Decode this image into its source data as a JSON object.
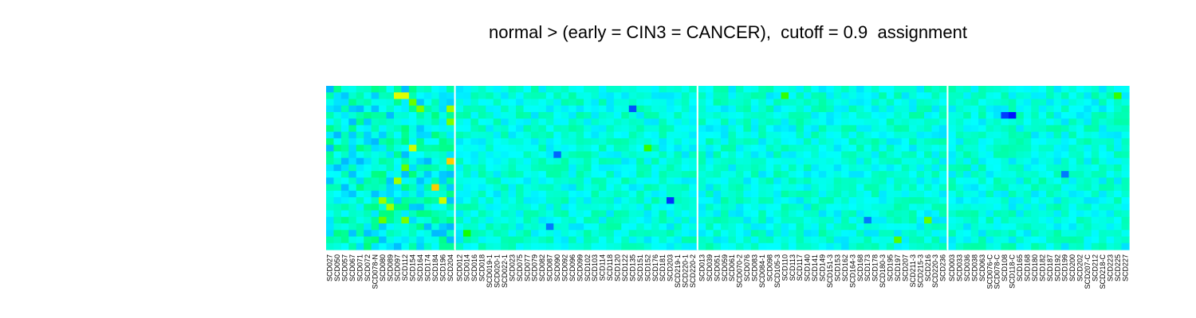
{
  "chart_data": {
    "type": "heatmap",
    "title": "normal > (early = CIN3 = CANCER),  cutoff = 0.9  assignment",
    "colormap": [
      "#0000ff",
      "#00ffff",
      "#00ff00",
      "#ffff00",
      "#ff0000"
    ],
    "background_level": 0.28,
    "n_rows": 25,
    "groups": [
      {
        "columns": [
          "SCD027",
          "SCD050",
          "SCD057",
          "SCD067",
          "SCD071",
          "SCD072",
          "SCD078-N",
          "SCD080",
          "SCD089",
          "SCD097",
          "SCD112",
          "SCD154",
          "SCD164",
          "SCD174",
          "SCD184",
          "SCD196",
          "SCD204"
        ],
        "hot_cells": [
          [
            1,
            9,
            0.72
          ],
          [
            1,
            10,
            0.72
          ],
          [
            2,
            11,
            0.6
          ],
          [
            3,
            12,
            0.62
          ],
          [
            3,
            16,
            0.65
          ],
          [
            5,
            16,
            0.62
          ],
          [
            9,
            11,
            0.7
          ],
          [
            11,
            16,
            0.8
          ],
          [
            12,
            10,
            0.6
          ],
          [
            13,
            17,
            0.68
          ],
          [
            14,
            9,
            0.66
          ],
          [
            15,
            14,
            0.8
          ],
          [
            17,
            7,
            0.65
          ],
          [
            17,
            15,
            0.7
          ],
          [
            18,
            17,
            0.7
          ],
          [
            18,
            8,
            0.66
          ],
          [
            20,
            7,
            0.6
          ],
          [
            20,
            10,
            0.62
          ],
          [
            21,
            17,
            0.62
          ],
          [
            22,
            17,
            0.62
          ],
          [
            25,
            3,
            0.9
          ],
          [
            26,
            3,
            0.85
          ],
          [
            26,
            2,
            0.72
          ],
          [
            27,
            4,
            0.85
          ],
          [
            28,
            3,
            0.65
          ],
          [
            28,
            11,
            0.65
          ],
          [
            29,
            10,
            0.7
          ],
          [
            31,
            17,
            0.82
          ],
          [
            32,
            10,
            0.68
          ],
          [
            30,
            12,
            0.6
          ]
        ],
        "cold_cells": []
      },
      {
        "columns": [
          "SCD012",
          "SCD014",
          "SCD016",
          "SCD018",
          "SCD019-1",
          "SCD020-1",
          "SCD022-1",
          "SCD023",
          "SCD075",
          "SCD077",
          "SCD079",
          "SCD082",
          "SCD087",
          "SCD090",
          "SCD092",
          "SCD096",
          "SCD099",
          "SCD102",
          "SCD103",
          "SCD114",
          "SCD118",
          "SCD120",
          "SCD122",
          "SCD135",
          "SCD151",
          "SCD152",
          "SCD176",
          "SCD181",
          "SCD203",
          "SCD219-1",
          "SCD220-1",
          "SCD220-2"
        ],
        "hot_cells": [
          [
            9,
            25,
            0.55
          ],
          [
            22,
            1,
            0.52
          ],
          [
            31,
            21,
            0.55
          ],
          [
            31,
            22,
            0.52
          ]
        ],
        "cold_cells": [
          [
            3,
            23,
            0.08
          ],
          [
            17,
            28,
            0.05
          ],
          [
            10,
            13,
            0.1
          ],
          [
            21,
            12,
            0.12
          ]
        ]
      },
      {
        "columns": [
          "SCD013",
          "SCD039",
          "SCD051",
          "SCD059",
          "SCD061",
          "SCD070-2",
          "SCD076",
          "SCD083",
          "SCD084-1",
          "SCD098",
          "SCD105-3",
          "SCD110",
          "SCD113",
          "SCD117",
          "SCD140",
          "SCD141",
          "SCD149",
          "SCD151-3",
          "SCD153",
          "SCD162",
          "SCD164-3",
          "SCD168",
          "SCD173",
          "SCD178",
          "SCD180-3",
          "SCD195",
          "SCD197",
          "SCD207",
          "SCD211-3",
          "SCD215-3",
          "SCD216",
          "SCD220-3",
          "SCD236"
        ],
        "hot_cells": [
          [
            1,
            11,
            0.55
          ],
          [
            20,
            30,
            0.6
          ],
          [
            26,
            25,
            0.55
          ],
          [
            23,
            26,
            0.58
          ]
        ],
        "cold_cells": [
          [
            16,
            38,
            0.05
          ],
          [
            20,
            22,
            0.12
          ]
        ]
      },
      {
        "columns": [
          "SCD003",
          "SCD033",
          "SCD036",
          "SCD038",
          "SCD063",
          "SCD076-C",
          "SCD078-C",
          "SCD108",
          "SCD118-C",
          "SCD165",
          "SCD168",
          "SCD180",
          "SCD182",
          "SCD187",
          "SCD192",
          "SCD199",
          "SCD200",
          "SCD202",
          "SCD207-C",
          "SCD212",
          "SCD218-C",
          "SCD223",
          "SCD225",
          "SCD227"
        ],
        "hot_cells": [
          [
            1,
            22,
            0.55
          ],
          [
            31,
            10,
            0.55
          ]
        ],
        "cold_cells": [
          [
            4,
            8,
            0.02
          ],
          [
            4,
            7,
            0.06
          ],
          [
            13,
            15,
            0.12
          ]
        ]
      }
    ]
  }
}
